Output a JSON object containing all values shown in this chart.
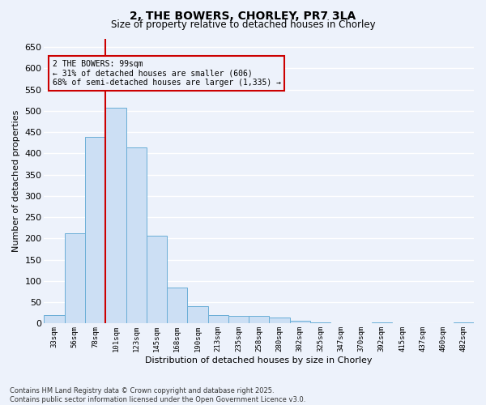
{
  "title_line1": "2, THE BOWERS, CHORLEY, PR7 3LA",
  "title_line2": "Size of property relative to detached houses in Chorley",
  "xlabel": "Distribution of detached houses by size in Chorley",
  "ylabel": "Number of detached properties",
  "categories": [
    "33sqm",
    "56sqm",
    "78sqm",
    "101sqm",
    "123sqm",
    "145sqm",
    "168sqm",
    "190sqm",
    "213sqm",
    "235sqm",
    "258sqm",
    "280sqm",
    "302sqm",
    "325sqm",
    "347sqm",
    "370sqm",
    "392sqm",
    "415sqm",
    "437sqm",
    "460sqm",
    "482sqm"
  ],
  "values": [
    20,
    213,
    438,
    507,
    413,
    207,
    85,
    40,
    20,
    18,
    17,
    14,
    7,
    3,
    0,
    0,
    2,
    0,
    0,
    0,
    2
  ],
  "bar_color": "#ccdff4",
  "bar_edge_color": "#6aaed6",
  "vline_color": "#cc0000",
  "annotation_text": "2 THE BOWERS: 99sqm\n← 31% of detached houses are smaller (606)\n68% of semi-detached houses are larger (1,335) →",
  "annotation_box_color": "#cc0000",
  "ylim": [
    0,
    670
  ],
  "yticks": [
    0,
    50,
    100,
    150,
    200,
    250,
    300,
    350,
    400,
    450,
    500,
    550,
    600,
    650
  ],
  "background_color": "#edf2fb",
  "grid_color": "#ffffff",
  "footer_line1": "Contains HM Land Registry data © Crown copyright and database right 2025.",
  "footer_line2": "Contains public sector information licensed under the Open Government Licence v3.0."
}
